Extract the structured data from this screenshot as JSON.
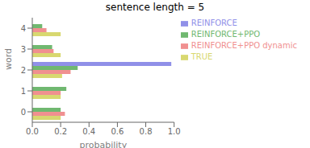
{
  "chart_data": {
    "type": "bar",
    "orientation": "horizontal",
    "title": "sentence length = 5",
    "x_label": "probability",
    "y_label": "word",
    "categories": [
      "0",
      "1",
      "2",
      "3",
      "4"
    ],
    "series": [
      {
        "name": "REINFORCE",
        "color": "#9090e8",
        "values": [
          0.0,
          0.0,
          0.98,
          0.0,
          0.0
        ]
      },
      {
        "name": "REINFORCE+PPO",
        "color": "#70b870",
        "values": [
          0.2,
          0.24,
          0.32,
          0.14,
          0.07
        ]
      },
      {
        "name": "REINFORCE+PPO dynamic",
        "color": "#f09090",
        "values": [
          0.23,
          0.2,
          0.27,
          0.15,
          0.1
        ]
      },
      {
        "name": "TRUE",
        "color": "#d8d870",
        "values": [
          0.2,
          0.2,
          0.21,
          0.2,
          0.2
        ]
      }
    ],
    "xlim": [
      0.0,
      1.0
    ],
    "xticks": [
      {
        "value": 0.0,
        "label": "0.0"
      },
      {
        "value": 0.2,
        "label": "0.2"
      },
      {
        "value": 0.4,
        "label": "0.4"
      },
      {
        "value": 0.6,
        "label": "0.6"
      },
      {
        "value": 0.8,
        "label": "0.8"
      },
      {
        "value": 1.0,
        "label": "1.0"
      }
    ],
    "grid": false,
    "legend": "upper right"
  }
}
